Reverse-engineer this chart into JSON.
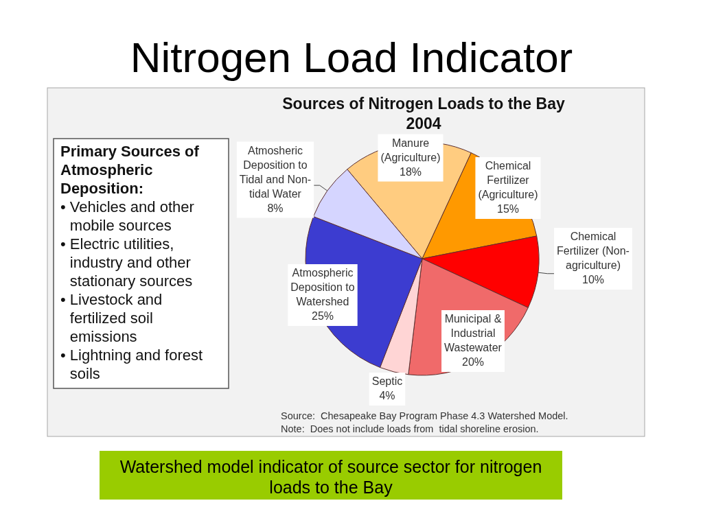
{
  "chart_data": [
    {
      "type": "pie",
      "title": "Nitrogen Load Indicator",
      "subtitle": "Sources of Nitrogen Loads to the Bay 2004",
      "categories": [
        "Manure (Agriculture)",
        "Chemical Fertilizer (Agriculture)",
        "Chemical Fertilizer (Non-agriculture)",
        "Municipal & Industrial Wastewater",
        "Septic",
        "Atmospheric Deposition to Watershed",
        "Atmosheric Deposition to Tidal and Non-tidal Water"
      ],
      "values": [
        18,
        15,
        10,
        20,
        4,
        25,
        8
      ],
      "value_labels": [
        "18%",
        "15%",
        "10%",
        "20%",
        "4%",
        "25%",
        "8%"
      ],
      "colors": [
        "#ffcc80",
        "#ff9900",
        "#ff0000",
        "#f06a6a",
        "#ffd5d5",
        "#3c3cd0",
        "#d5d5ff"
      ],
      "annotations": [
        "Source:  Chesapeake Bay Program Phase 4.3 Watershed Model.",
        "Note:  Does not include loads from  tidal shoreline erosion.",
        "Watershed model indicator of source sector for nitrogen loads to the Bay"
      ]
    },
    {
      "type": "other",
      "title": "Primary Sources of Atmospheric Deposition:",
      "annotations": [
        "• Vehicles and other mobile sources",
        "• Electric utilities, industry and other stationary sources",
        "• Livestock and fertilized soil emissions",
        "• Lightning and forest soils"
      ]
    }
  ]
}
